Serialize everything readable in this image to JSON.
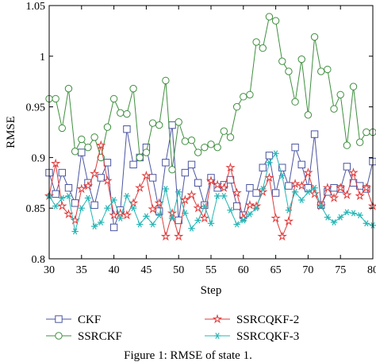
{
  "chart_data": {
    "type": "line",
    "xlabel": "Step",
    "ylabel": "RMSE",
    "xlim": [
      30,
      80
    ],
    "ylim": [
      0.8,
      1.05
    ],
    "xticks": [
      "30",
      "35",
      "40",
      "45",
      "50",
      "55",
      "60",
      "65",
      "70",
      "75",
      "80"
    ],
    "yticks": [
      "0.8",
      "0.85",
      "0.9",
      "0.95",
      "1",
      "1.05"
    ],
    "grid": false,
    "legend_position": "bottom",
    "x": [
      30,
      31,
      32,
      33,
      34,
      35,
      36,
      37,
      38,
      39,
      40,
      41,
      42,
      43,
      44,
      45,
      46,
      47,
      48,
      49,
      50,
      51,
      52,
      53,
      54,
      55,
      56,
      57,
      58,
      59,
      60,
      61,
      62,
      63,
      64,
      65,
      66,
      67,
      68,
      69,
      70,
      71,
      72,
      73,
      74,
      75,
      76,
      77,
      78,
      79,
      80
    ],
    "series": [
      {
        "name": "CKF",
        "color": "#4a55a2",
        "marker": "square",
        "values": [
          0.885,
          0.864,
          0.885,
          0.87,
          0.855,
          0.905,
          0.875,
          0.853,
          0.88,
          0.895,
          0.831,
          0.848,
          0.928,
          0.893,
          0.9,
          0.91,
          0.88,
          0.847,
          0.895,
          0.932,
          0.838,
          0.885,
          0.893,
          0.875,
          0.853,
          0.88,
          0.87,
          0.873,
          0.878,
          0.852,
          0.843,
          0.87,
          0.865,
          0.89,
          0.902,
          0.865,
          0.89,
          0.872,
          0.91,
          0.893,
          0.87,
          0.923,
          0.853,
          0.866,
          0.87,
          0.869,
          0.891,
          0.875,
          0.872,
          0.869,
          0.896
        ]
      },
      {
        "name": "SSRCKF",
        "color": "#3f8f3f",
        "marker": "circle",
        "values": [
          0.958,
          0.958,
          0.929,
          0.968,
          0.906,
          0.918,
          0.91,
          0.92,
          0.9,
          0.93,
          0.958,
          0.944,
          0.943,
          0.968,
          0.9,
          0.905,
          0.934,
          0.932,
          0.976,
          0.888,
          0.935,
          0.916,
          0.917,
          0.905,
          0.91,
          0.913,
          0.91,
          0.926,
          0.92,
          0.95,
          0.96,
          0.962,
          1.014,
          1.008,
          1.039,
          1.035,
          0.995,
          0.985,
          0.955,
          0.997,
          0.942,
          1.019,
          0.985,
          0.987,
          0.948,
          0.962,
          0.912,
          0.97,
          0.915,
          0.925,
          0.925
        ]
      },
      {
        "name": "SSRCQKF-2",
        "color": "#e03a3a",
        "marker": "star",
        "values": [
          0.862,
          0.894,
          0.852,
          0.844,
          0.838,
          0.869,
          0.872,
          0.884,
          0.912,
          0.877,
          0.843,
          0.845,
          0.843,
          0.855,
          0.87,
          0.882,
          0.849,
          0.855,
          0.822,
          0.845,
          0.822,
          0.858,
          0.863,
          0.85,
          0.84,
          0.877,
          0.873,
          0.87,
          0.89,
          0.865,
          0.84,
          0.853,
          0.852,
          0.866,
          0.88,
          0.84,
          0.822,
          0.837,
          0.874,
          0.872,
          0.885,
          0.864,
          0.852,
          0.87,
          0.86,
          0.87,
          0.863,
          0.885,
          0.862,
          0.87,
          0.852
        ]
      },
      {
        "name": "SSRCQKF-3",
        "color": "#25b6b6",
        "marker": "asterisk",
        "values": [
          0.862,
          0.852,
          0.86,
          0.862,
          0.827,
          0.85,
          0.86,
          0.832,
          0.836,
          0.85,
          0.858,
          0.84,
          0.862,
          0.85,
          0.834,
          0.842,
          0.834,
          0.843,
          0.869,
          0.84,
          0.866,
          0.845,
          0.83,
          0.838,
          0.852,
          0.835,
          0.862,
          0.862,
          0.848,
          0.834,
          0.838,
          0.844,
          0.85,
          0.869,
          0.895,
          0.904,
          0.882,
          0.848,
          0.866,
          0.858,
          0.866,
          0.87,
          0.852,
          0.841,
          0.836,
          0.841,
          0.846,
          0.845,
          0.843,
          0.835,
          0.833
        ]
      }
    ]
  },
  "caption": "Figure 1: RMSE of state 1."
}
